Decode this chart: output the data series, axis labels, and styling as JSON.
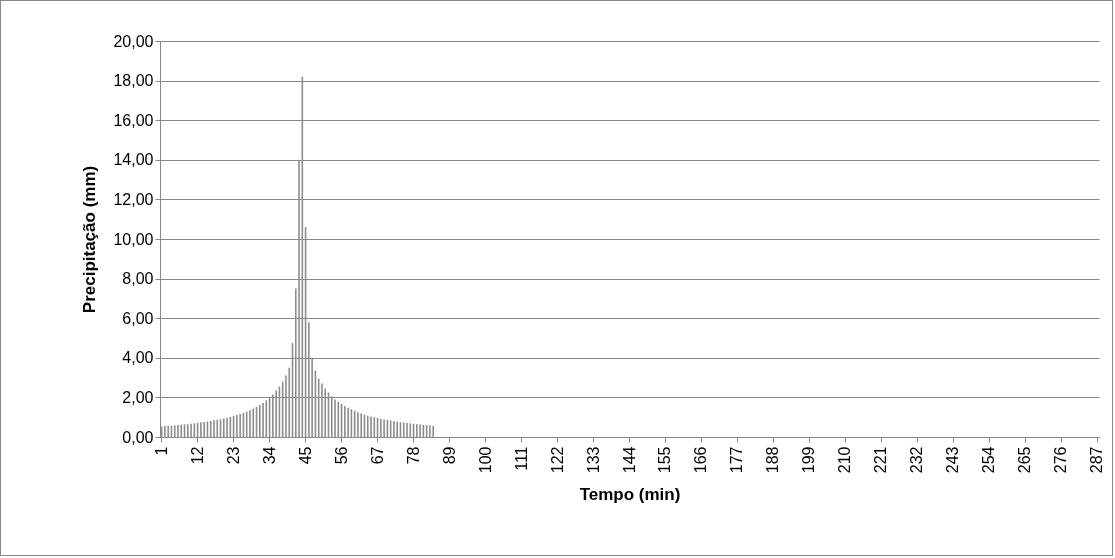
{
  "chart_data": {
    "type": "bar",
    "xlabel": "Tempo (min)",
    "ylabel": "Precipitação (mm)",
    "color": "#8c8c8c",
    "grid": "y",
    "ylim": [
      0,
      20
    ],
    "yticks": [
      {
        "value": 0,
        "label": "0,00"
      },
      {
        "value": 2,
        "label": "2,00"
      },
      {
        "value": 4,
        "label": "4,00"
      },
      {
        "value": 6,
        "label": "6,00"
      },
      {
        "value": 8,
        "label": "8,00"
      },
      {
        "value": 10,
        "label": "10,00"
      },
      {
        "value": 12,
        "label": "12,00"
      },
      {
        "value": 14,
        "label": "14,00"
      },
      {
        "value": 16,
        "label": "16,00"
      },
      {
        "value": 18,
        "label": "18,00"
      },
      {
        "value": 20,
        "label": "20,00"
      }
    ],
    "categories": [
      "1",
      null,
      null,
      null,
      null,
      null,
      null,
      null,
      null,
      null,
      null,
      "12",
      null,
      null,
      null,
      null,
      null,
      null,
      null,
      null,
      null,
      null,
      "23",
      null,
      null,
      null,
      null,
      null,
      null,
      null,
      null,
      null,
      null,
      "34",
      null,
      null,
      null,
      null,
      null,
      null,
      null,
      null,
      null,
      null,
      "45",
      null,
      null,
      null,
      null,
      null,
      null,
      null,
      null,
      null,
      null,
      "56",
      null,
      null,
      null,
      null,
      null,
      null,
      null,
      null,
      null,
      null,
      "67",
      null,
      null,
      null,
      null,
      null,
      null,
      null,
      null,
      null,
      null,
      "78",
      null,
      null,
      null,
      null,
      null,
      null,
      null,
      null,
      null,
      null,
      "89",
      null,
      null,
      null,
      null,
      null,
      null,
      null,
      null,
      null,
      null,
      "100",
      null,
      null,
      null,
      null,
      null,
      null,
      null,
      null,
      null,
      null,
      "111",
      null,
      null,
      null,
      null,
      null,
      null,
      null,
      null,
      null,
      null,
      "122",
      null,
      null,
      null,
      null,
      null,
      null,
      null,
      null,
      null,
      null,
      "133",
      null,
      null,
      null,
      null,
      null,
      null,
      null,
      null,
      null,
      null,
      "144",
      null,
      null,
      null,
      null,
      null,
      null,
      null,
      null,
      null,
      null,
      "155",
      null,
      null,
      null,
      null,
      null,
      null,
      null,
      null,
      null,
      null,
      "166",
      null,
      null,
      null,
      null,
      null,
      null,
      null,
      null,
      null,
      null,
      "177",
      null,
      null,
      null,
      null,
      null,
      null,
      null,
      null,
      null,
      null,
      "188",
      null,
      null,
      null,
      null,
      null,
      null,
      null,
      null,
      null,
      null,
      "199",
      null,
      null,
      null,
      null,
      null,
      null,
      null,
      null,
      null,
      null,
      "210",
      null,
      null,
      null,
      null,
      null,
      null,
      null,
      null,
      null,
      null,
      "221",
      null,
      null,
      null,
      null,
      null,
      null,
      null,
      null,
      null,
      null,
      "232",
      null,
      null,
      null,
      null,
      null,
      null,
      null,
      null,
      null,
      null,
      "243",
      null,
      null,
      null,
      null,
      null,
      null,
      null,
      null,
      null,
      null,
      "254",
      null,
      null,
      null,
      null,
      null,
      null,
      null,
      null,
      null,
      null,
      "265",
      null,
      null,
      null,
      null,
      null,
      null,
      null,
      null,
      null,
      null,
      "276",
      null,
      null,
      null,
      null,
      null,
      null,
      null,
      null,
      null,
      null,
      "287"
    ],
    "values": [
      0.53,
      0.55,
      0.56,
      0.57,
      0.59,
      0.6,
      0.62,
      0.64,
      0.65,
      0.67,
      0.69,
      0.71,
      0.74,
      0.76,
      0.78,
      0.81,
      0.84,
      0.87,
      0.9,
      0.93,
      0.97,
      1.01,
      1.06,
      1.11,
      1.16,
      1.22,
      1.28,
      1.35,
      1.43,
      1.52,
      1.62,
      1.72,
      1.85,
      2.0,
      2.15,
      2.35,
      2.55,
      2.8,
      3.1,
      3.5,
      4.75,
      7.5,
      14.0,
      18.2,
      10.6,
      5.8,
      4.0,
      3.35,
      2.95,
      2.7,
      2.45,
      2.25,
      2.05,
      1.9,
      1.78,
      1.67,
      1.57,
      1.48,
      1.4,
      1.32,
      1.25,
      1.19,
      1.13,
      1.08,
      1.04,
      1.0,
      0.96,
      0.92,
      0.89,
      0.86,
      0.83,
      0.8,
      0.78,
      0.75,
      0.73,
      0.71,
      0.69,
      0.67,
      0.65,
      0.63,
      0.61,
      0.6,
      0.58,
      0.56,
      null,
      null,
      null,
      null,
      null,
      null,
      null,
      null,
      null,
      null,
      null,
      null,
      null,
      null,
      null,
      null,
      null,
      null,
      null,
      null,
      null,
      null,
      null,
      null,
      null,
      null,
      null,
      null,
      null,
      null,
      null,
      null,
      null,
      null,
      null,
      null,
      null,
      null,
      null,
      null,
      null,
      null,
      null,
      null,
      null,
      null,
      null,
      null,
      null,
      null,
      null,
      null,
      null,
      null,
      null,
      null,
      null,
      null,
      null,
      null,
      null,
      null,
      null,
      null,
      null,
      null,
      null,
      null,
      null,
      null,
      null,
      null,
      null,
      null,
      null,
      null,
      null,
      null,
      null,
      null,
      null,
      null,
      null,
      null,
      null,
      null,
      null,
      null,
      null,
      null,
      null,
      null,
      null,
      null,
      null,
      null,
      null,
      null,
      null,
      null,
      null,
      null,
      null,
      null,
      null,
      null,
      null,
      null,
      null,
      null,
      null,
      null,
      null,
      null,
      null,
      null,
      null,
      null,
      null,
      null,
      null,
      null,
      null,
      null,
      null,
      null,
      null,
      null,
      null,
      null,
      null,
      null,
      null,
      null,
      null,
      null,
      null,
      null,
      null,
      null,
      null,
      null,
      null,
      null,
      null,
      null,
      null,
      null,
      null,
      null,
      null,
      null,
      null,
      null,
      null,
      null,
      null,
      null,
      null,
      null,
      null,
      null,
      null,
      null,
      null,
      null,
      null,
      null,
      null,
      null,
      null,
      null,
      null,
      null,
      null,
      null,
      null,
      null,
      null,
      null,
      null,
      null,
      null,
      null,
      null,
      null,
      null,
      null,
      null,
      null,
      null,
      null,
      null,
      null,
      null,
      null,
      null,
      null,
      null,
      null,
      null,
      null,
      null
    ]
  }
}
